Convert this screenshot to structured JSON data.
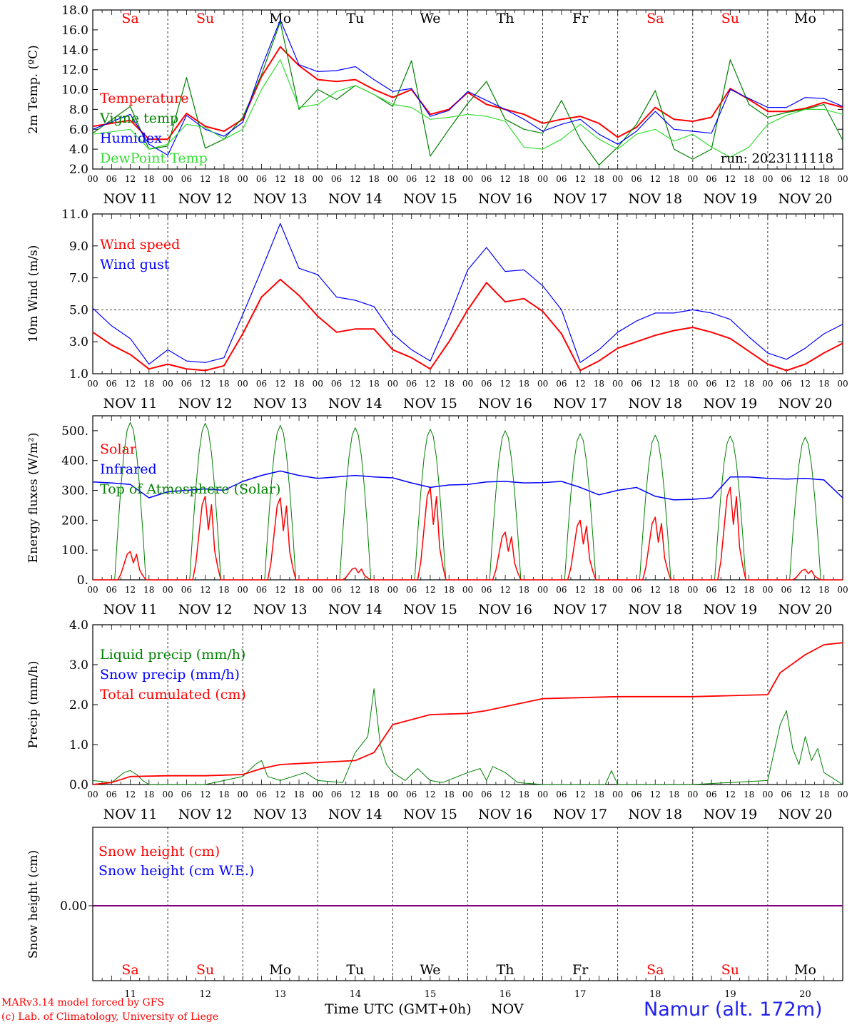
{
  "run_label": "run: 2023111118",
  "days": [
    "Sa",
    "Su",
    "Mo",
    "Tu",
    "We",
    "Th",
    "Fr",
    "Sa",
    "Su",
    "Mo"
  ],
  "weekend_days": [
    "Sa",
    "Su"
  ],
  "date_labels": [
    "NOV 11",
    "NOV 12",
    "NOV 13",
    "NOV 14",
    "NOV 15",
    "NOV 16",
    "NOV 17",
    "NOV 18",
    "NOV 19",
    "NOV 20"
  ],
  "hour_ticks": [
    "00",
    "06",
    "12",
    "18"
  ],
  "hour_tick_last": "00",
  "day_numbers": [
    "11",
    "12",
    "13",
    "14",
    "15",
    "16",
    "17",
    "18",
    "19",
    "20"
  ],
  "xlabel": "Time UTC (GMT+0h)",
  "xlabel_month": "NOV",
  "footer": {
    "line1": "MARv3.14 model forced by GFS",
    "line2": "(c) Lab. of Climatology, University of Liege",
    "station": "Namur (alt. 172m)"
  },
  "colors": {
    "red": "#ff0000",
    "green": "#008000",
    "blue": "#0000ff",
    "lightgreen": "#33dd33",
    "purple": "#800080"
  },
  "chart_data": [
    {
      "type": "line",
      "ylabel": "2m Temp. (ºC)",
      "ylim": [
        2,
        18
      ],
      "yticks": [
        "2.0",
        "4.0",
        "6.0",
        "8.0",
        "10.0",
        "12.0",
        "14.0",
        "16.0",
        "18.0"
      ],
      "x_hours": [
        0,
        12,
        18,
        24,
        30,
        36,
        42,
        48,
        54,
        60,
        66,
        72,
        78,
        84,
        90,
        96,
        102,
        108,
        114,
        120,
        126,
        132,
        138,
        144,
        150,
        156,
        162,
        168,
        174,
        180,
        186,
        192,
        198,
        204,
        210,
        216,
        222,
        228,
        234,
        240
      ],
      "series": [
        {
          "name": "Temperature",
          "color": "red",
          "values": [
            6.3,
            6.9,
            5.0,
            5.0,
            7.6,
            6.3,
            5.8,
            7.0,
            11.3,
            14.3,
            12.4,
            11.0,
            10.8,
            11.0,
            10.0,
            9.2,
            10.0,
            7.5,
            8.0,
            9.7,
            8.5,
            8.0,
            7.5,
            6.6,
            7.0,
            7.3,
            6.6,
            5.2,
            6.2,
            8.2,
            7.0,
            6.8,
            7.2,
            10.1,
            9.0,
            7.8,
            7.8,
            8.1,
            8.7,
            8.2
          ]
        },
        {
          "name": "Vigne temp",
          "color": "green",
          "values": [
            5.6,
            8.3,
            4.0,
            4.3,
            11.2,
            4.1,
            5.0,
            7.2,
            11.5,
            16.8,
            8.0,
            10.0,
            9.0,
            10.4,
            9.5,
            8.3,
            12.9,
            3.3,
            6.0,
            8.6,
            10.8,
            7.0,
            6.0,
            5.6,
            8.9,
            5.0,
            2.4,
            4.2,
            6.5,
            9.9,
            4.0,
            3.0,
            4.0,
            13.0,
            8.5,
            7.2,
            7.7,
            8.0,
            8.5,
            4.9
          ]
        },
        {
          "name": "Humidex",
          "color": "blue",
          "values": [
            6.0,
            7.5,
            4.5,
            3.4,
            7.4,
            6.0,
            5.3,
            6.7,
            12.2,
            17.0,
            12.5,
            11.8,
            11.9,
            12.3,
            11.0,
            9.8,
            10.1,
            7.3,
            7.9,
            9.8,
            8.9,
            8.0,
            7.0,
            5.8,
            6.5,
            7.0,
            5.5,
            4.5,
            5.8,
            7.8,
            6.0,
            5.8,
            5.6,
            10.0,
            9.1,
            8.2,
            8.2,
            9.2,
            9.1,
            8.3
          ]
        },
        {
          "name": "DewPoint Temp",
          "color": "lightgreen",
          "values": [
            5.5,
            6.0,
            4.0,
            4.5,
            6.5,
            6.2,
            5.0,
            6.0,
            10.0,
            13.0,
            8.2,
            8.5,
            9.8,
            10.4,
            9.5,
            8.5,
            8.2,
            7.0,
            7.2,
            7.5,
            7.3,
            6.8,
            4.2,
            4.0,
            5.0,
            6.5,
            5.0,
            4.0,
            5.5,
            6.0,
            4.8,
            5.5,
            4.2,
            3.2,
            4.2,
            6.5,
            7.4,
            8.0,
            8.0,
            7.5
          ]
        }
      ]
    },
    {
      "type": "line",
      "ylabel": "10m Wind (m/s)",
      "ylim": [
        1,
        11
      ],
      "yticks": [
        "1.0",
        "3.0",
        "5.0",
        "7.0",
        "9.0",
        "11.0"
      ],
      "ref_line": 5.0,
      "x_hours": [
        0,
        6,
        12,
        18,
        24,
        30,
        36,
        42,
        48,
        54,
        60,
        66,
        72,
        78,
        84,
        90,
        96,
        102,
        108,
        114,
        120,
        126,
        132,
        138,
        144,
        150,
        156,
        162,
        168,
        174,
        180,
        186,
        192,
        198,
        204,
        210,
        216,
        222,
        228,
        234,
        240
      ],
      "series": [
        {
          "name": "Wind speed",
          "color": "red",
          "values": [
            3.6,
            2.8,
            2.2,
            1.3,
            1.6,
            1.3,
            1.2,
            1.5,
            3.5,
            5.8,
            6.9,
            5.9,
            4.6,
            3.6,
            3.8,
            3.8,
            2.5,
            2.0,
            1.3,
            3.0,
            5.0,
            6.7,
            5.5,
            5.7,
            4.9,
            3.5,
            1.2,
            1.8,
            2.6,
            3.0,
            3.4,
            3.7,
            3.9,
            3.6,
            3.2,
            2.4,
            1.6,
            1.2,
            1.6,
            2.3,
            2.9
          ]
        },
        {
          "name": "Wind gust",
          "color": "blue",
          "values": [
            5.1,
            4.0,
            3.2,
            1.6,
            2.5,
            1.8,
            1.7,
            2.0,
            4.7,
            7.5,
            10.4,
            7.6,
            7.2,
            5.8,
            5.6,
            5.2,
            3.5,
            2.5,
            1.8,
            4.5,
            7.5,
            8.9,
            7.4,
            7.5,
            6.5,
            5.0,
            1.7,
            2.5,
            3.6,
            4.3,
            4.8,
            4.8,
            5.0,
            4.8,
            4.4,
            3.3,
            2.3,
            1.9,
            2.6,
            3.5,
            4.1
          ]
        }
      ]
    },
    {
      "type": "line",
      "ylabel": "Energy fluxes (W/m²)",
      "ylim": [
        0,
        550
      ],
      "yticks": [
        "0.",
        "100.",
        "200.",
        "300.",
        "400.",
        "500."
      ],
      "series": [
        {
          "name": "Solar",
          "color": "red",
          "peaks_by_day": [
            95,
            280,
            275,
            40,
            310,
            160,
            200,
            210,
            310,
            35
          ]
        },
        {
          "name": "Infrared",
          "color": "blue",
          "x_hours": [
            0,
            6,
            12,
            18,
            24,
            30,
            36,
            42,
            48,
            54,
            60,
            66,
            72,
            78,
            84,
            90,
            96,
            102,
            108,
            114,
            120,
            126,
            132,
            138,
            144,
            150,
            156,
            162,
            168,
            174,
            180,
            186,
            192,
            198,
            204,
            210,
            216,
            222,
            228,
            234,
            240
          ],
          "values": [
            328,
            325,
            320,
            275,
            295,
            300,
            305,
            300,
            330,
            350,
            365,
            350,
            340,
            345,
            350,
            345,
            342,
            325,
            310,
            318,
            320,
            328,
            330,
            325,
            326,
            330,
            310,
            285,
            300,
            310,
            280,
            268,
            270,
            275,
            345,
            345,
            340,
            338,
            340,
            335,
            275
          ]
        },
        {
          "name": "Top of Atmosphere (Solar)",
          "color": "green",
          "peaks_by_day": [
            528,
            525,
            518,
            510,
            505,
            500,
            490,
            485,
            482,
            478
          ]
        }
      ]
    },
    {
      "type": "line",
      "ylabel": "Precip (mm/h)",
      "ylim": [
        0,
        4
      ],
      "yticks": [
        "0.0",
        "1.0",
        "2.0",
        "3.0",
        "4.0"
      ],
      "series": [
        {
          "name": "Liquid precip (mm/h)",
          "color": "green",
          "x_hours": [
            0,
            6,
            10,
            12,
            14,
            16,
            18,
            24,
            36,
            48,
            52,
            54,
            56,
            60,
            68,
            72,
            80,
            84,
            88,
            90,
            92,
            94,
            96,
            100,
            104,
            108,
            112,
            120,
            124,
            126,
            128,
            132,
            136,
            144,
            164,
            166,
            168,
            192,
            216,
            220,
            222,
            224,
            226,
            228,
            230,
            232,
            234,
            236,
            240
          ],
          "values": [
            0.1,
            0.05,
            0.3,
            0.35,
            0.25,
            0.1,
            0.0,
            0.0,
            0.0,
            0.2,
            0.5,
            0.6,
            0.2,
            0.1,
            0.3,
            0.1,
            0.05,
            0.8,
            1.2,
            2.4,
            1.0,
            0.5,
            0.3,
            0.1,
            0.4,
            0.1,
            0.05,
            0.3,
            0.4,
            0.1,
            0.45,
            0.3,
            0.05,
            0.0,
            0.0,
            0.35,
            0.0,
            0.0,
            0.1,
            1.5,
            1.85,
            0.9,
            0.5,
            1.2,
            0.6,
            0.9,
            0.3,
            0.2,
            0.0
          ]
        },
        {
          "name": "Snow precip (mm/h)",
          "color": "blue",
          "values": []
        },
        {
          "name": "Total cumulated (cm)",
          "color": "red",
          "x_hours": [
            0,
            6,
            12,
            24,
            36,
            48,
            54,
            60,
            72,
            84,
            90,
            96,
            108,
            120,
            126,
            132,
            144,
            168,
            192,
            216,
            220,
            228,
            234,
            240
          ],
          "values": [
            0.0,
            0.05,
            0.2,
            0.22,
            0.22,
            0.25,
            0.4,
            0.5,
            0.55,
            0.6,
            0.8,
            1.5,
            1.75,
            1.78,
            1.85,
            1.95,
            2.15,
            2.2,
            2.2,
            2.25,
            2.8,
            3.25,
            3.5,
            3.55
          ]
        }
      ]
    },
    {
      "type": "line",
      "ylabel": "Snow height (cm)",
      "yticks": [
        "0.00"
      ],
      "series": [
        {
          "name": "Snow height (cm)",
          "color": "red",
          "values": [
            0,
            0
          ]
        },
        {
          "name": "Snow height (cm W.E.)",
          "color": "blue",
          "values": [
            0,
            0
          ]
        }
      ]
    }
  ]
}
